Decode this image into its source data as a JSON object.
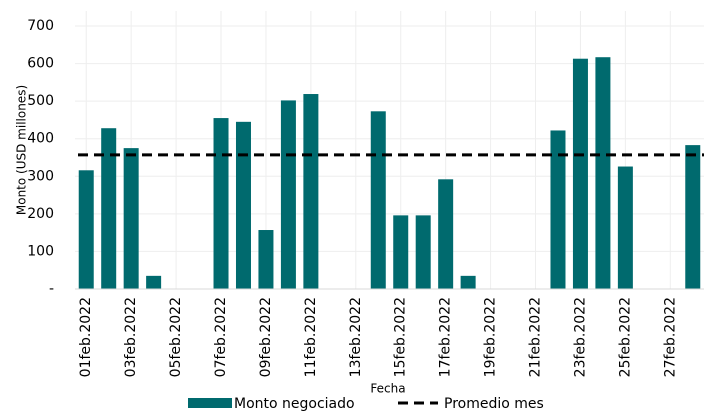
{
  "chart_data": {
    "type": "bar",
    "x_label": "Fecha",
    "y_label": "Monto (USD millones)",
    "categories": [
      "01feb.2022",
      null,
      "03feb.2022",
      null,
      "05feb.2022",
      null,
      "07feb.2022",
      null,
      "09feb.2022",
      null,
      "11feb.2022",
      null,
      "13feb.2022",
      null,
      "15feb.2022",
      null,
      "17feb.2022",
      null,
      "19feb.2022",
      null,
      "21feb.2022",
      null,
      "23feb.2022",
      null,
      "25feb.2022",
      null,
      "27feb.2022",
      null
    ],
    "series": [
      {
        "name": "Monto negociado",
        "type": "bar",
        "color": "#006a6e",
        "values": [
          316,
          428,
          375,
          35,
          null,
          null,
          455,
          445,
          157,
          502,
          519,
          null,
          null,
          473,
          196,
          196,
          292,
          35,
          null,
          null,
          null,
          422,
          613,
          617,
          326,
          null,
          null,
          383
        ]
      },
      {
        "name": "Promedio mes",
        "type": "line",
        "color": "#000000",
        "dash": true,
        "values": [
          357,
          357,
          357,
          357,
          357,
          357,
          357,
          357,
          357,
          357,
          357,
          357,
          357,
          357,
          357,
          357,
          357,
          357,
          357,
          357,
          357,
          357,
          357,
          357,
          357,
          357,
          357,
          357
        ]
      }
    ],
    "ylim": [
      0,
      740
    ],
    "yticks": [
      {
        "value": 0,
        "label": "-"
      },
      100,
      200,
      300,
      400,
      500,
      600,
      700
    ],
    "grid": true,
    "legend": "bottom"
  }
}
